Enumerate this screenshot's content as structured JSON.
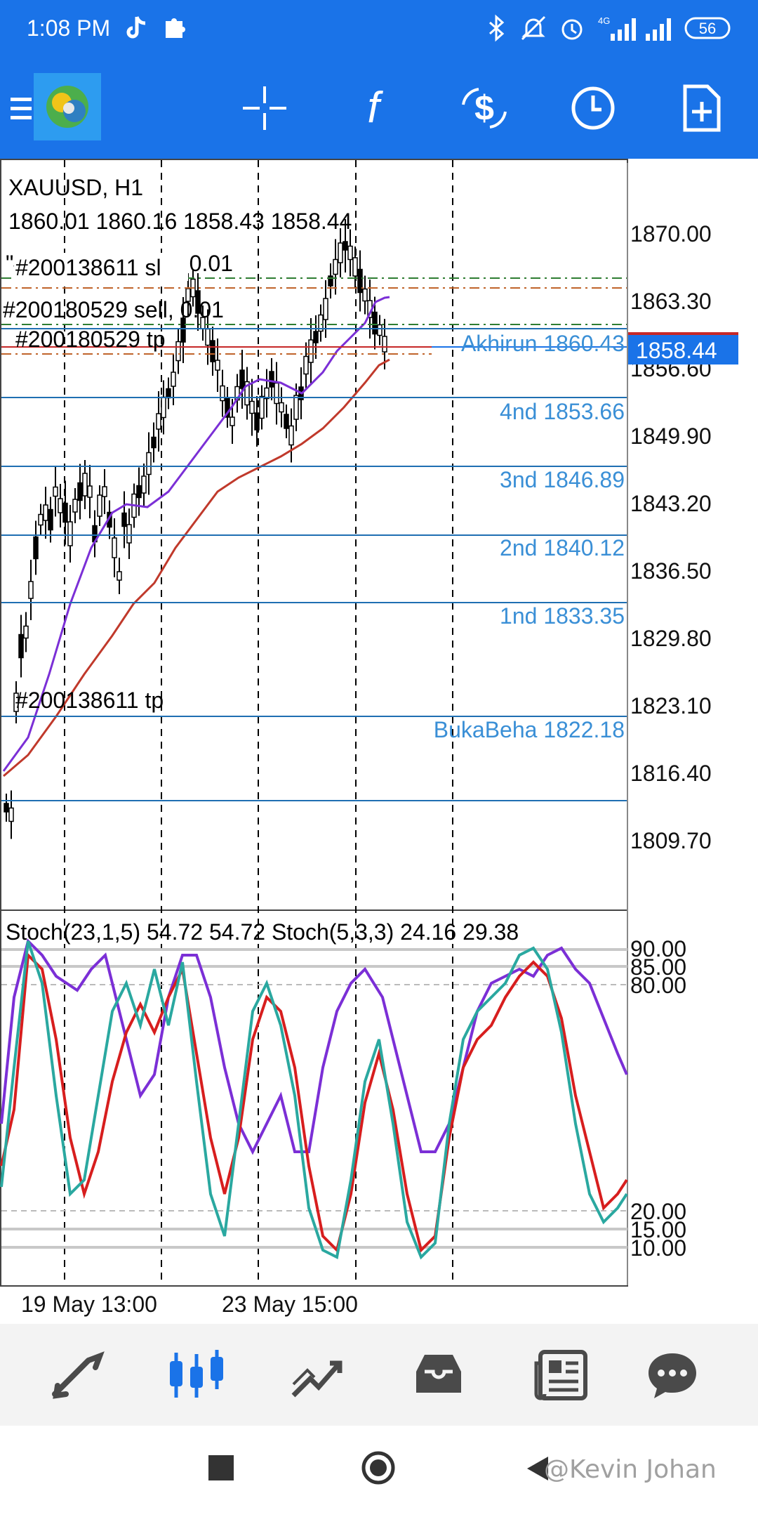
{
  "status_bar": {
    "time": "1:08 PM",
    "battery": "56",
    "network": "4G"
  },
  "toolbar": {
    "icons": [
      "menu-icon",
      "app-logo-icon",
      "crosshair-icon",
      "indicators-icon",
      "trade-icon",
      "timeframe-icon",
      "new-order-icon"
    ]
  },
  "chart": {
    "symbol": "XAUUSD, H1",
    "ohlc": "1860.01 1860.16 1858.43 1858.44",
    "current_price": "1858.44",
    "price_axis": [
      "1870.00",
      "1863.30",
      "1856.60",
      "1849.90",
      "1843.20",
      "1836.50",
      "1829.80",
      "1823.10",
      "1816.40",
      "1809.70"
    ],
    "orders": [
      {
        "label": "\"#200138611 sell, 0.01"
      },
      {
        "label": "#200138611 sl"
      },
      {
        "label": "#200180529 sell, 0.01"
      },
      {
        "label": "#200180529 tp"
      },
      {
        "label": "#200138611 tp"
      }
    ],
    "levels": [
      {
        "label": "Akhirun 1860.43"
      },
      {
        "label": "4nd 1853.66"
      },
      {
        "label": "3nd 1846.89"
      },
      {
        "label": "2nd 1840.12"
      },
      {
        "label": "1nd 1833.35"
      },
      {
        "label": "BukaBeha 1822.18"
      }
    ],
    "colors": {
      "candle": "#000000",
      "ma_fast": "#7b2fd6",
      "ma_slow": "#c0392b",
      "level_line": "#1f6fb2",
      "level_text": "#3a8fd6",
      "price_tag_bg": "#1a73e8",
      "stoch_main": "#d71e1e",
      "stoch_signal": "#2aa8a0",
      "stoch_slow": "#7b2fd6"
    }
  },
  "indicator": {
    "label": "Stoch(23,1,5) 54.72 54.72 Stoch(5,3,3) 24.16 29.38",
    "axis": [
      "90.00",
      "85.00",
      "80.00",
      "20.00",
      "15.00",
      "10.00"
    ]
  },
  "time_axis": [
    "19 May 13:00",
    "23 May 15:00"
  ],
  "bottom_nav": {
    "items": [
      "quotes-icon",
      "chart-icon",
      "trade-icon",
      "history-icon",
      "news-icon",
      "messages-icon"
    ]
  },
  "system_nav": {
    "items": [
      "recents-icon",
      "home-icon",
      "back-icon"
    ]
  },
  "watermark": "@Kevin Johan"
}
